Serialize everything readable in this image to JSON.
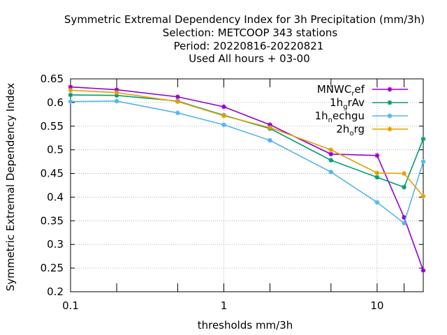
{
  "chart_data": {
    "type": "line",
    "title_lines": [
      "Symmetric Extremal Dependency Index  for 3h Precipitation (mm/3h)",
      "Selection: METCOOP    343 stations",
      "Period: 20220816-20220821",
      "Used  All hours  + 03-00"
    ],
    "xlabel": "thresholds mm/3h",
    "ylabel": "Symmetric Extremal Dependency Index",
    "x_scale": "log",
    "xlim": [
      0.1,
      20
    ],
    "ylim": [
      0.2,
      0.65
    ],
    "x_ticks": [
      {
        "value": 0.1,
        "label": "0.1"
      },
      {
        "value": 1,
        "label": "1"
      },
      {
        "value": 10,
        "label": "10"
      }
    ],
    "y_ticks": [
      {
        "value": 0.2,
        "label": "0.2"
      },
      {
        "value": 0.25,
        "label": "0.25"
      },
      {
        "value": 0.3,
        "label": "0.3"
      },
      {
        "value": 0.35,
        "label": "0.35"
      },
      {
        "value": 0.4,
        "label": "0.4"
      },
      {
        "value": 0.45,
        "label": "0.45"
      },
      {
        "value": 0.5,
        "label": "0.5"
      },
      {
        "value": 0.55,
        "label": "0.55"
      },
      {
        "value": 0.6,
        "label": "0.6"
      },
      {
        "value": 0.65,
        "label": "0.65"
      }
    ],
    "grid": true,
    "legend_position": "top-right",
    "x": [
      0.1,
      0.2,
      0.5,
      1,
      2,
      5,
      10,
      15,
      20
    ],
    "series": [
      {
        "name": "MNWC_ref",
        "name_main": "MNWC",
        "name_sub": "r",
        "name_rest": "ef",
        "color": "#9400d3",
        "values": [
          0.633,
          0.627,
          0.612,
          0.591,
          0.553,
          0.491,
          0.488,
          0.357,
          0.245
        ]
      },
      {
        "name": "1h_grAv",
        "name_main": "1h",
        "name_sub": "g",
        "name_rest": "rAv",
        "color": "#009e73",
        "values": [
          0.616,
          0.615,
          0.603,
          0.573,
          0.545,
          0.478,
          0.442,
          0.421,
          0.523
        ]
      },
      {
        "name": "1h_nechgu",
        "name_main": "1h",
        "name_sub": "n",
        "name_rest": "echgu",
        "color": "#56b4e9",
        "values": [
          0.602,
          0.603,
          0.578,
          0.553,
          0.52,
          0.453,
          0.389,
          0.345,
          0.475
        ]
      },
      {
        "name": "2h_org",
        "name_main": "2h",
        "name_sub": "o",
        "name_rest": "rg",
        "color": "#e69f00",
        "values": [
          0.626,
          0.621,
          0.602,
          0.572,
          0.547,
          0.5,
          0.451,
          0.45,
          0.402
        ]
      }
    ]
  }
}
